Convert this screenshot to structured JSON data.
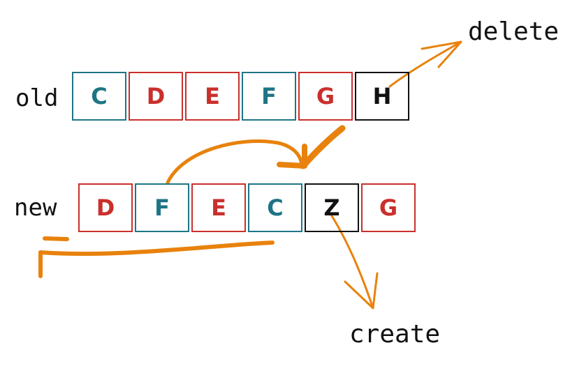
{
  "labels": {
    "old": "old",
    "new": "new",
    "delete": "delete",
    "create": "create"
  },
  "colors": {
    "teal": "#1e7585",
    "red": "#c9302c",
    "black": "#111111",
    "orange": "#e8820c"
  },
  "old_row": [
    {
      "letter": "C",
      "color": "teal"
    },
    {
      "letter": "D",
      "color": "red"
    },
    {
      "letter": "E",
      "color": "red"
    },
    {
      "letter": "F",
      "color": "teal"
    },
    {
      "letter": "G",
      "color": "red"
    },
    {
      "letter": "H",
      "color": "black"
    }
  ],
  "new_row": [
    {
      "letter": "D",
      "color": "red"
    },
    {
      "letter": "F",
      "color": "teal"
    },
    {
      "letter": "E",
      "color": "red"
    },
    {
      "letter": "C",
      "color": "teal"
    },
    {
      "letter": "Z",
      "color": "black"
    },
    {
      "letter": "G",
      "color": "red"
    }
  ]
}
